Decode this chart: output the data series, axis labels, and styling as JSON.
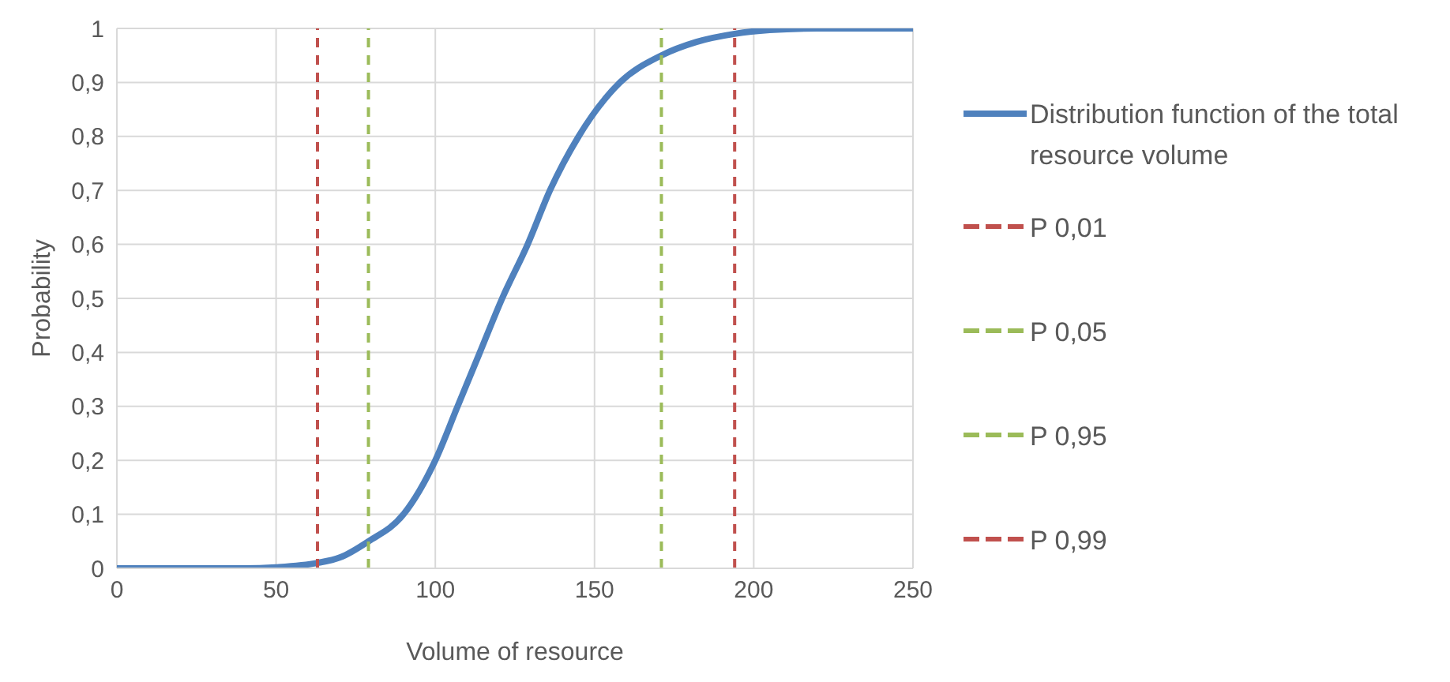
{
  "chart_data": {
    "type": "line",
    "xlabel": "Volume of resource",
    "ylabel": "Probability",
    "x": [
      0,
      40,
      50,
      63,
      70,
      79,
      90,
      100,
      107,
      114,
      121,
      129,
      136,
      145,
      158,
      171,
      182,
      194,
      205,
      220,
      250
    ],
    "series": [
      {
        "name": "Distribution function of the total resource volume",
        "color": "#4f81bd",
        "values": [
          0,
          0,
          0.002,
          0.01,
          0.02,
          0.05,
          0.1,
          0.2,
          0.3,
          0.4,
          0.5,
          0.6,
          0.7,
          0.8,
          0.9,
          0.95,
          0.975,
          0.99,
          0.997,
          1,
          1
        ]
      },
      {
        "name": "P 0,01",
        "color": "#c0504d",
        "line_style": "dashed",
        "x": [
          63,
          63
        ],
        "values": [
          0,
          1
        ]
      },
      {
        "name": "P 0,05",
        "color": "#9bbb59",
        "line_style": "dashed",
        "x": [
          79,
          79
        ],
        "values": [
          0,
          1
        ]
      },
      {
        "name": "P 0,95",
        "color": "#9bbb59",
        "line_style": "dashed",
        "x": [
          171,
          171
        ],
        "values": [
          0,
          1
        ]
      },
      {
        "name": "P 0,99",
        "color": "#c0504d",
        "line_style": "dashed",
        "x": [
          194,
          194
        ],
        "values": [
          0,
          1
        ]
      }
    ],
    "xlim": [
      0,
      250
    ],
    "xticks": [
      0,
      50,
      100,
      150,
      200,
      250
    ],
    "ylim": [
      0,
      1
    ],
    "yticks": [
      0,
      {
        "value": 0.1,
        "label": "0,1"
      },
      {
        "value": 0.2,
        "label": "0,2"
      },
      {
        "value": 0.3,
        "label": "0,3"
      },
      {
        "value": 0.4,
        "label": "0,4"
      },
      {
        "value": 0.5,
        "label": "0,5"
      },
      {
        "value": 0.6,
        "label": "0,6"
      },
      {
        "value": 0.7,
        "label": "0,7"
      },
      {
        "value": 0.8,
        "label": "0,8"
      },
      {
        "value": 0.9,
        "label": "0,9"
      },
      1
    ],
    "grid": true,
    "legend": "right",
    "marker": "none",
    "line_style": "solid"
  }
}
